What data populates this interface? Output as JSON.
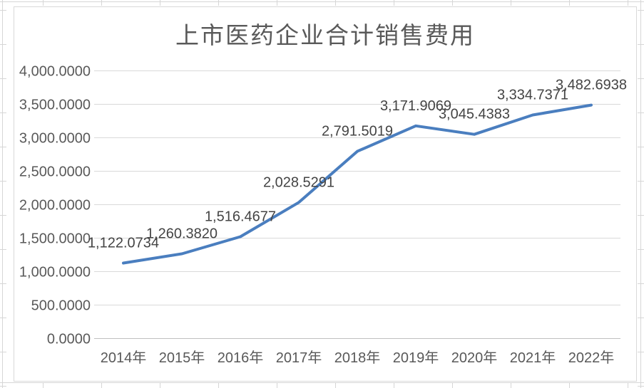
{
  "chart_data": {
    "type": "line",
    "title": "上市医药企业合计销售费用",
    "categories": [
      "2014年",
      "2015年",
      "2016年",
      "2017年",
      "2018年",
      "2019年",
      "2020年",
      "2021年",
      "2022年"
    ],
    "values": [
      1122.0734,
      1260.382,
      1516.4677,
      2028.5291,
      2791.5019,
      3171.9069,
      3045.4383,
      3334.7371,
      3482.6938
    ],
    "value_labels": [
      "1,122.0734",
      "1,260.3820",
      "1,516.4677",
      "2,028.5291",
      "2,791.5019",
      "3,171.9069",
      "3,045.4383",
      "3,334.7371",
      "3,482.6938"
    ],
    "xlabel": "",
    "ylabel": "",
    "ylim": [
      0,
      4000
    ],
    "ytick_step": 500,
    "ytick_labels": [
      "0.0000",
      "500.0000",
      "1,000.0000",
      "1,500.0000",
      "2,000.0000",
      "2,500.0000",
      "3,000.0000",
      "3,500.0000",
      "4,000.0000"
    ],
    "grid": "horizontal",
    "legend": "none",
    "colors": {
      "line": "#4A7EBF",
      "gridline": "#D9D9D9",
      "axis_line": "#BFBFBF",
      "axis_text": "#595959",
      "data_label_text": "#444444",
      "title_text": "#595959",
      "chart_border": "#D9D9D9",
      "sheet_gridline": "#D6D6D6",
      "background": "#FFFFFF"
    }
  }
}
